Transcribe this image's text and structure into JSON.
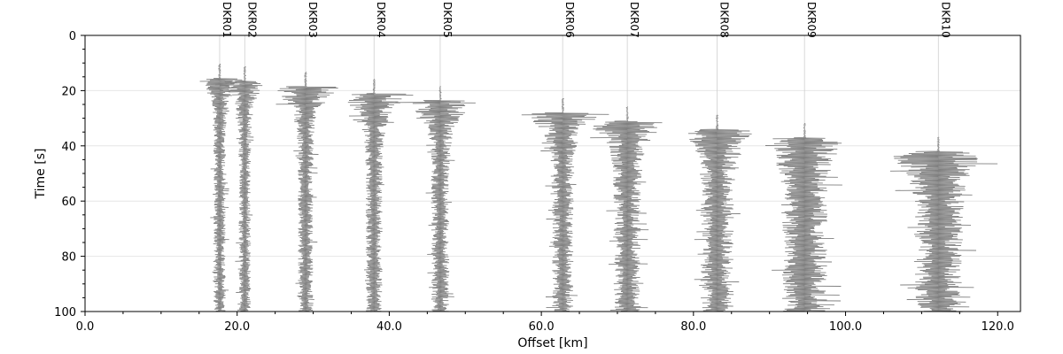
{
  "chart_data": {
    "type": "seismic-record-section",
    "xlabel": "Offset [km]",
    "ylabel": "Time [s]",
    "xlim": [
      0,
      123
    ],
    "ylim": [
      100,
      0
    ],
    "x_ticks": [
      0,
      20,
      40,
      60,
      80,
      100,
      120
    ],
    "x_tick_labels": [
      "0.0",
      "20.0",
      "40.0",
      "60.0",
      "80.0",
      "100.0",
      "120.0"
    ],
    "y_ticks": [
      0,
      20,
      40,
      60,
      80,
      100
    ],
    "y_tick_labels": [
      "0",
      "20",
      "40",
      "60",
      "80",
      "100"
    ],
    "grid": true,
    "trace_color": "#808080",
    "traces": [
      {
        "station": "DKR01",
        "offset_km": 17.7,
        "onset_s": 15.5,
        "peak_halfwidth_km": 3.5,
        "coda_halfwidth_km": 0.8
      },
      {
        "station": "DKR02",
        "offset_km": 21.0,
        "onset_s": 16.5,
        "peak_halfwidth_km": 3.6,
        "coda_halfwidth_km": 0.8
      },
      {
        "station": "DKR03",
        "offset_km": 29.0,
        "onset_s": 18.5,
        "peak_halfwidth_km": 6.5,
        "coda_halfwidth_km": 1.0
      },
      {
        "station": "DKR04",
        "offset_km": 38.0,
        "onset_s": 21.0,
        "peak_halfwidth_km": 6.5,
        "coda_halfwidth_km": 1.1
      },
      {
        "station": "DKR05",
        "offset_km": 46.7,
        "onset_s": 23.5,
        "peak_halfwidth_km": 6.5,
        "coda_halfwidth_km": 1.2
      },
      {
        "station": "DKR06",
        "offset_km": 62.8,
        "onset_s": 28.0,
        "peak_halfwidth_km": 6.5,
        "coda_halfwidth_km": 1.4
      },
      {
        "station": "DKR07",
        "offset_km": 71.3,
        "onset_s": 31.0,
        "peak_halfwidth_km": 6.5,
        "coda_halfwidth_km": 1.8
      },
      {
        "station": "DKR08",
        "offset_km": 83.1,
        "onset_s": 34.0,
        "peak_halfwidth_km": 5.5,
        "coda_halfwidth_km": 2.2
      },
      {
        "station": "DKR09",
        "offset_km": 94.6,
        "onset_s": 37.0,
        "peak_halfwidth_km": 6.0,
        "coda_halfwidth_km": 3.0
      },
      {
        "station": "DKR10",
        "offset_km": 112.2,
        "onset_s": 42.0,
        "peak_halfwidth_km": 6.5,
        "coda_halfwidth_km": 3.2
      }
    ]
  }
}
